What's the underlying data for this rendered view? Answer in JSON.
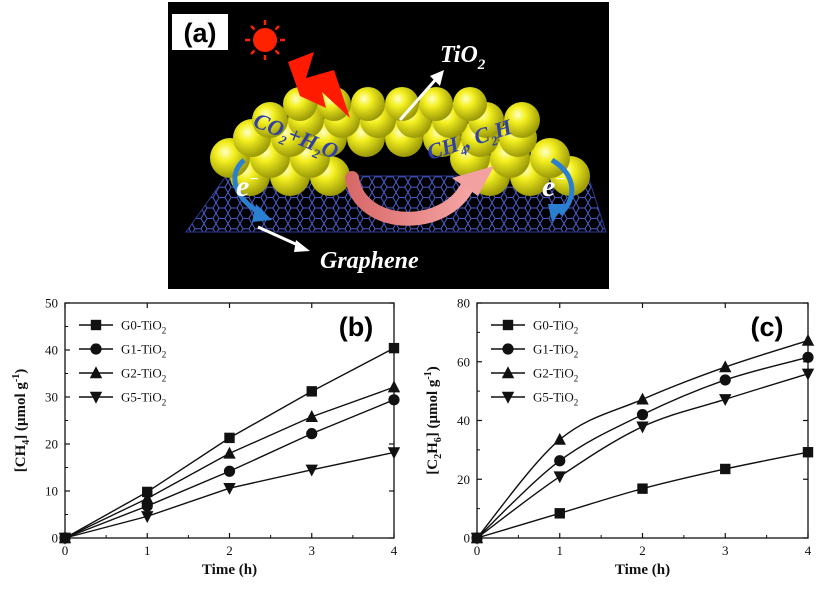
{
  "panel_a": {
    "letter": "(a)",
    "labels": {
      "tio2": "TiO",
      "tio2_sub": "2",
      "graphene": "Graphene",
      "electron": "e",
      "electron_sup": "−",
      "co2": "CO",
      "co2_sub": "2",
      "plus_h2o": "+H",
      "h2o_sub": "2",
      "h2o_o": "O",
      "ch4": "CH",
      "ch4_sub": "4",
      "c2h6": ", C",
      "c2h6_sub": "2",
      "c2h6_h": "H"
    },
    "colors": {
      "background": "#000000",
      "tio2_sphere": "#f2f01a",
      "graphene_mesh": "#3a4fb8",
      "arrow_pink": "#f09090",
      "electron_arrow": "#2a7fd0",
      "sun": "#ff2200"
    }
  },
  "chart_data": [
    {
      "panel": "(b)",
      "type": "line",
      "x": [
        0,
        1,
        2,
        3,
        4
      ],
      "xlabel": "Time (h)",
      "ylabel": "[CH4] (μmol g-1)",
      "ylabel_parts": {
        "pre": "[CH",
        "sub": "4",
        "mid": "] (μmol g",
        "sup": "-1",
        "post": ")"
      },
      "xlim": [
        0,
        4
      ],
      "ylim": [
        0,
        50
      ],
      "xticks": [
        0,
        1,
        2,
        3,
        4
      ],
      "yticks": [
        0,
        10,
        20,
        30,
        40,
        50
      ],
      "legend_position": "top-left",
      "series": [
        {
          "name": "G0-TiO2",
          "label_main": "G0-TiO",
          "label_sub": "2",
          "marker": "square",
          "values": [
            0,
            9.8,
            21.3,
            31.2,
            40.4
          ]
        },
        {
          "name": "G1-TiO2",
          "label_main": "G1-TiO",
          "label_sub": "2",
          "marker": "circle",
          "values": [
            0,
            6.8,
            14.2,
            22.2,
            29.4
          ]
        },
        {
          "name": "G2-TiO2",
          "label_main": "G2-TiO",
          "label_sub": "2",
          "marker": "triangle-up",
          "values": [
            0,
            8.4,
            18.0,
            25.8,
            32.1
          ]
        },
        {
          "name": "G5-TiO2",
          "label_main": "G5-TiO",
          "label_sub": "2",
          "marker": "triangle-down",
          "values": [
            0,
            4.6,
            10.6,
            14.5,
            18.2
          ]
        }
      ]
    },
    {
      "panel": "(c)",
      "type": "line",
      "x": [
        0,
        1,
        2,
        3,
        4
      ],
      "xlabel": "Time (h)",
      "ylabel": "[C2H6] (μmol g-1)",
      "ylabel_parts": {
        "pre": "[C",
        "sub": "2",
        "mid": "H",
        "sub2": "6",
        "mid2": "] (μmol g",
        "sup": "-1",
        "post": ")"
      },
      "xlim": [
        0,
        4
      ],
      "ylim": [
        0,
        80
      ],
      "xticks": [
        0,
        1,
        2,
        3,
        4
      ],
      "yticks": [
        0,
        20,
        40,
        60,
        80
      ],
      "legend_position": "top-left",
      "series": [
        {
          "name": "G0-TiO2",
          "label_main": "G0-TiO",
          "label_sub": "2",
          "marker": "square",
          "values": [
            0,
            8.4,
            16.8,
            23.5,
            29.2
          ]
        },
        {
          "name": "G1-TiO2",
          "label_main": "G1-TiO",
          "label_sub": "2",
          "marker": "circle",
          "values": [
            0,
            26.3,
            42.0,
            53.8,
            61.5
          ]
        },
        {
          "name": "G2-TiO2",
          "label_main": "G2-TiO",
          "label_sub": "2",
          "marker": "triangle-up",
          "values": [
            0,
            33.5,
            47.2,
            58.2,
            67.2
          ]
        },
        {
          "name": "G5-TiO2",
          "label_main": "G5-TiO",
          "label_sub": "2",
          "marker": "triangle-down",
          "values": [
            0,
            20.9,
            37.9,
            47.2,
            55.9
          ]
        }
      ]
    }
  ]
}
